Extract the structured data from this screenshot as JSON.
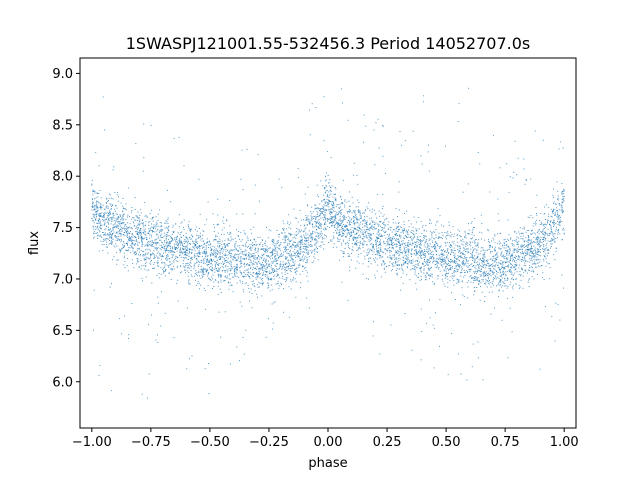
{
  "chart_data": {
    "type": "scatter",
    "title": "1SWASPJ121001.55-532456.3 Period 14052707.0s",
    "xlabel": "phase",
    "ylabel": "flux",
    "xlim": [
      -1.05,
      1.05
    ],
    "ylim": [
      5.55,
      9.15
    ],
    "xticks": [
      -1.0,
      -0.75,
      -0.5,
      -0.25,
      0.0,
      0.25,
      0.5,
      0.75,
      1.0
    ],
    "xtick_labels": [
      "−1.00",
      "−0.75",
      "−0.50",
      "−0.25",
      "0.00",
      "0.25",
      "0.50",
      "0.75",
      "1.00"
    ],
    "yticks": [
      6.0,
      6.5,
      7.0,
      7.5,
      8.0,
      8.5,
      9.0
    ],
    "ytick_labels": [
      "6.0",
      "6.5",
      "7.0",
      "7.5",
      "8.0",
      "8.5",
      "9.0"
    ],
    "grid": false,
    "point_color": "#1f77b4",
    "series": [
      {
        "x": [
          -1.0,
          -0.95,
          -0.9,
          -0.85,
          -0.8,
          -0.75,
          -0.7,
          -0.65,
          -0.6,
          -0.55,
          -0.5,
          -0.45,
          -0.4,
          -0.35,
          -0.3,
          -0.25,
          -0.2,
          -0.15,
          -0.1,
          -0.05,
          0.0,
          0.05,
          0.1,
          0.15,
          0.2,
          0.25,
          0.3,
          0.35,
          0.4,
          0.45,
          0.5,
          0.55,
          0.6,
          0.65,
          0.7,
          0.75,
          0.8,
          0.85,
          0.9,
          0.95,
          1.0
        ],
        "y": [
          7.7,
          7.55,
          7.5,
          7.45,
          7.4,
          7.35,
          7.3,
          7.3,
          7.25,
          7.25,
          7.2,
          7.2,
          7.2,
          7.15,
          7.15,
          7.15,
          7.2,
          7.25,
          7.35,
          7.5,
          7.7,
          7.55,
          7.5,
          7.45,
          7.4,
          7.35,
          7.3,
          7.3,
          7.25,
          7.25,
          7.2,
          7.2,
          7.2,
          7.15,
          7.15,
          7.15,
          7.2,
          7.25,
          7.35,
          7.5,
          7.7
        ],
        "y_min": [
          5.7,
          5.9,
          5.9,
          6.0,
          5.9,
          5.8,
          6.2,
          6.3,
          6.1,
          6.0,
          5.8,
          5.8,
          5.9,
          6.2,
          6.3,
          6.4,
          6.7,
          6.5,
          6.6,
          6.8,
          7.0,
          6.9,
          6.7,
          6.5,
          6.2,
          6.2,
          6.4,
          6.2,
          6.0,
          5.8,
          5.7,
          6.0,
          5.9,
          5.8,
          6.2,
          6.3,
          6.0,
          6.4,
          6.0,
          6.3,
          6.6
        ],
        "y_max": [
          8.6,
          8.9,
          8.9,
          8.7,
          8.7,
          8.6,
          8.6,
          8.4,
          8.5,
          8.6,
          8.6,
          8.9,
          8.9,
          8.5,
          8.5,
          8.3,
          8.1,
          8.0,
          8.6,
          8.8,
          8.9,
          8.9,
          8.9,
          8.6,
          8.7,
          8.7,
          8.5,
          8.4,
          8.8,
          8.8,
          8.9,
          8.9,
          8.9,
          8.5,
          8.4,
          8.3,
          8.5,
          8.4,
          8.7,
          8.2,
          8.5
        ]
      }
    ]
  }
}
